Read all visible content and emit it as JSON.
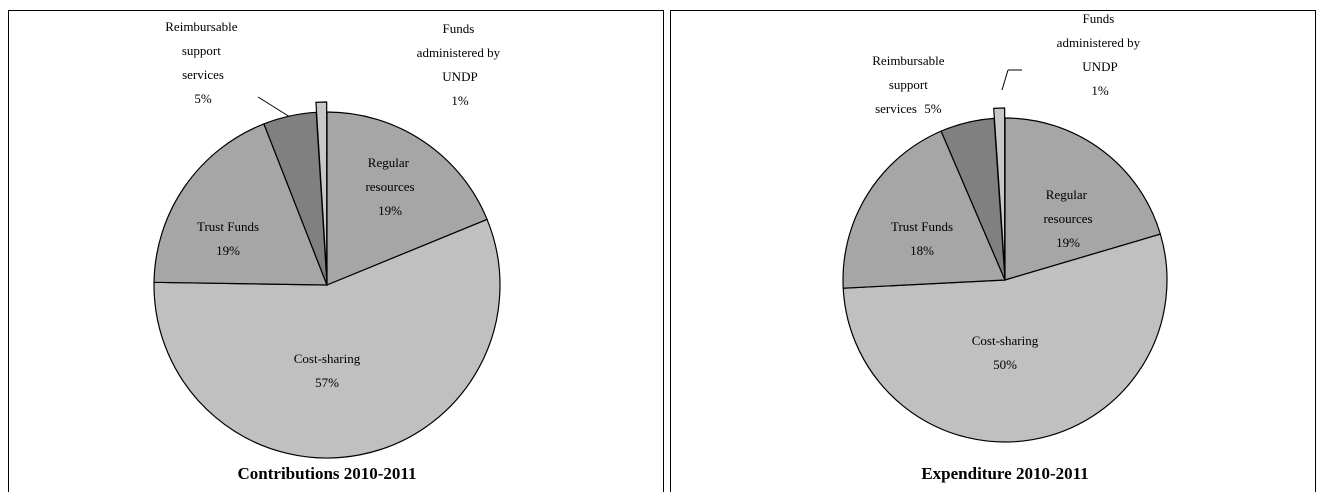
{
  "chart_data": [
    {
      "type": "pie",
      "title": "Contributions 2010-2011",
      "categories": [
        "Regular resources",
        "Cost-sharing",
        "Trust Funds",
        "Reimbursable support services",
        "Funds administered by UNDP"
      ],
      "values": [
        19,
        57,
        19,
        5,
        1
      ],
      "value_labels": [
        "19%",
        "57%",
        "19%",
        "5%",
        "1%"
      ],
      "colors": [
        "#a6a6a6",
        "#c0c0c0",
        "#a6a6a6",
        "#808080",
        "#c8c8c8"
      ]
    },
    {
      "type": "pie",
      "title": "Expenditure 2010-2011",
      "categories": [
        "Regular resources",
        "Cost-sharing",
        "Trust Funds",
        "Reimbursable support services",
        "Funds administered by UNDP"
      ],
      "values": [
        19,
        50,
        18,
        5,
        1
      ],
      "value_labels": [
        "19%",
        "50%",
        "18%",
        "5%",
        "1%"
      ],
      "colors": [
        "#a6a6a6",
        "#c0c0c0",
        "#a6a6a6",
        "#808080",
        "#c8c8c8"
      ]
    }
  ]
}
